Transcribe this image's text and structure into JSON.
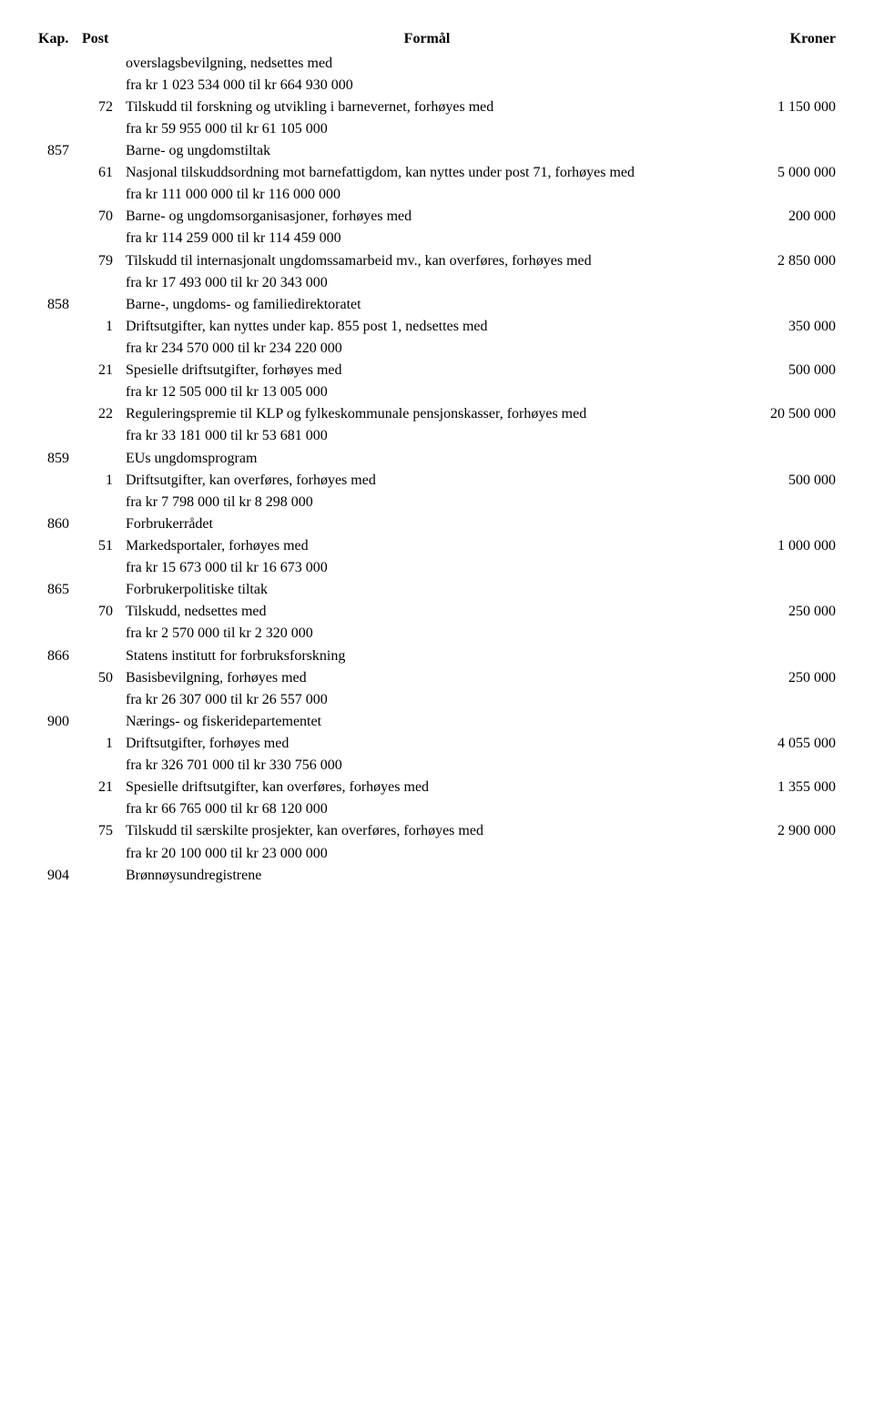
{
  "header": {
    "kap": "Kap.",
    "post": "Post",
    "formal": "Formål",
    "kroner": "Kroner"
  },
  "rows": [
    {
      "kap": "",
      "post": "",
      "text": "overslagsbevilgning, nedsettes med",
      "kr": ""
    },
    {
      "kap": "",
      "post": "",
      "text": "fra kr 1 023 534 000 til kr 664 930 000",
      "kr": ""
    },
    {
      "kap": "",
      "post": "72",
      "text": "Tilskudd til forskning og utvikling i barnevernet, forhøyes med",
      "kr": "1 150 000"
    },
    {
      "kap": "",
      "post": "",
      "text": "fra kr 59 955 000 til kr 61 105 000",
      "kr": ""
    },
    {
      "kap": "857",
      "post": "",
      "text": "Barne- og ungdomstiltak",
      "kr": ""
    },
    {
      "kap": "",
      "post": "61",
      "text": "Nasjonal tilskuddsordning mot barnefattigdom, kan nyttes under post 71, forhøyes med",
      "kr": "5 000 000"
    },
    {
      "kap": "",
      "post": "",
      "text": "fra kr 111 000 000 til kr 116 000 000",
      "kr": ""
    },
    {
      "kap": "",
      "post": "70",
      "text": "Barne- og ungdomsorganisasjoner, forhøyes med",
      "kr": "200 000"
    },
    {
      "kap": "",
      "post": "",
      "text": "fra kr 114 259 000 til kr 114 459 000",
      "kr": ""
    },
    {
      "kap": "",
      "post": "79",
      "text": "Tilskudd til internasjonalt ungdomssamarbeid mv., kan overføres, forhøyes med",
      "kr": "2 850 000"
    },
    {
      "kap": "",
      "post": "",
      "text": "fra kr 17 493 000 til kr 20 343 000",
      "kr": ""
    },
    {
      "kap": "858",
      "post": "",
      "text": "Barne-, ungdoms- og familiedirektoratet",
      "kr": ""
    },
    {
      "kap": "",
      "post": "1",
      "text": "Driftsutgifter, kan nyttes under kap. 855 post 1, nedsettes med",
      "kr": "350 000"
    },
    {
      "kap": "",
      "post": "",
      "text": "fra kr 234 570 000 til kr 234 220 000",
      "kr": ""
    },
    {
      "kap": "",
      "post": "21",
      "text": "Spesielle driftsutgifter, forhøyes med",
      "kr": "500 000"
    },
    {
      "kap": "",
      "post": "",
      "text": "fra kr 12 505 000 til kr 13 005 000",
      "kr": ""
    },
    {
      "kap": "",
      "post": "22",
      "text": "Reguleringspremie til KLP og fylkeskommunale pensjonskasser, forhøyes med",
      "kr": "20 500 000"
    },
    {
      "kap": "",
      "post": "",
      "text": "fra kr 33 181 000 til kr 53 681 000",
      "kr": ""
    },
    {
      "kap": "859",
      "post": "",
      "text": "EUs ungdomsprogram",
      "kr": ""
    },
    {
      "kap": "",
      "post": "1",
      "text": "Driftsutgifter, kan overføres, forhøyes med",
      "kr": "500 000"
    },
    {
      "kap": "",
      "post": "",
      "text": "fra kr 7 798 000 til kr 8 298 000",
      "kr": ""
    },
    {
      "kap": "860",
      "post": "",
      "text": "Forbrukerrådet",
      "kr": ""
    },
    {
      "kap": "",
      "post": "51",
      "text": "Markedsportaler, forhøyes med",
      "kr": "1 000 000"
    },
    {
      "kap": "",
      "post": "",
      "text": "fra kr 15 673 000 til kr 16 673 000",
      "kr": ""
    },
    {
      "kap": "865",
      "post": "",
      "text": "Forbrukerpolitiske tiltak",
      "kr": ""
    },
    {
      "kap": "",
      "post": "70",
      "text": "Tilskudd, nedsettes med",
      "kr": "250 000"
    },
    {
      "kap": "",
      "post": "",
      "text": "fra kr 2 570 000 til kr 2 320 000",
      "kr": ""
    },
    {
      "kap": "866",
      "post": "",
      "text": "Statens institutt for forbruksforskning",
      "kr": ""
    },
    {
      "kap": "",
      "post": "50",
      "text": "Basisbevilgning, forhøyes med",
      "kr": "250 000"
    },
    {
      "kap": "",
      "post": "",
      "text": "fra kr 26 307 000 til kr 26 557 000",
      "kr": ""
    },
    {
      "kap": "900",
      "post": "",
      "text": "Nærings- og fiskeridepartementet",
      "kr": ""
    },
    {
      "kap": "",
      "post": "1",
      "text": "Driftsutgifter, forhøyes med",
      "kr": "4 055 000"
    },
    {
      "kap": "",
      "post": "",
      "text": "fra kr 326 701 000 til kr 330 756 000",
      "kr": ""
    },
    {
      "kap": "",
      "post": "21",
      "text": "Spesielle driftsutgifter, kan overføres, forhøyes med",
      "kr": "1 355 000"
    },
    {
      "kap": "",
      "post": "",
      "text": "fra kr 66 765 000 til kr 68 120 000",
      "kr": ""
    },
    {
      "kap": "",
      "post": "75",
      "text": "Tilskudd til særskilte prosjekter, kan overføres, forhøyes med",
      "kr": "2 900 000"
    },
    {
      "kap": "",
      "post": "",
      "text": "fra kr 20 100 000 til kr 23 000 000",
      "kr": ""
    },
    {
      "kap": "904",
      "post": "",
      "text": "Brønnøysundregistrene",
      "kr": ""
    }
  ]
}
